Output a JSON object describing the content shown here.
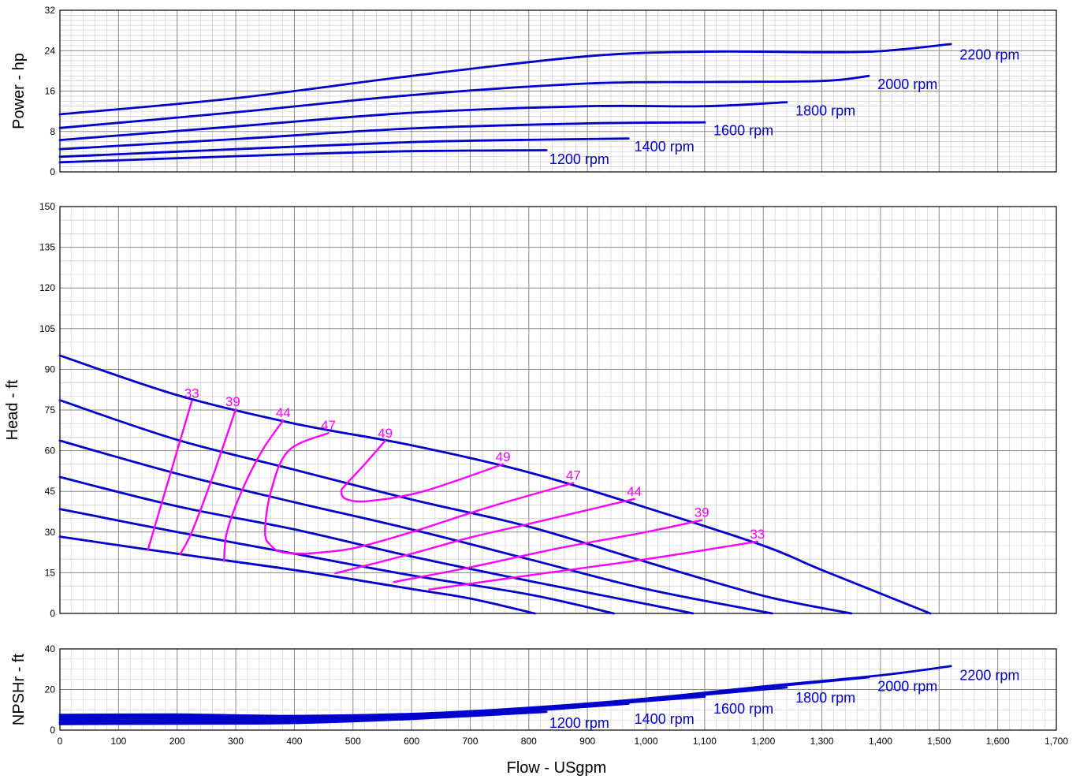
{
  "chart_data": {
    "type": "line",
    "x_axis": {
      "label": "Flow - USgpm",
      "range": [
        0,
        1700
      ],
      "ticks": [
        0,
        100,
        200,
        300,
        400,
        500,
        600,
        700,
        800,
        900,
        1000,
        1100,
        1200,
        1300,
        1400,
        1500,
        1600,
        1700
      ],
      "tick_labels": [
        "0",
        "100",
        "200",
        "300",
        "400",
        "500",
        "600",
        "700",
        "800",
        "900",
        "1,000",
        "1,100",
        "1,200",
        "1,300",
        "1,400",
        "1,500",
        "1,600",
        "1,700"
      ]
    },
    "colors": {
      "speed_curves": "#0000cc",
      "efficiency_curves": "#ff00ff",
      "grid": "#999999"
    },
    "panels": [
      {
        "id": "power",
        "ylabel": "Power - hp",
        "ylim": [
          0,
          32
        ],
        "yticks": [
          0,
          8,
          16,
          24,
          32
        ],
        "series": [
          {
            "name": "1200 rpm",
            "x": [
              0,
              200,
              400,
              600,
              830
            ],
            "y": [
              1.9,
              2.7,
              3.5,
              4.1,
              4.3
            ]
          },
          {
            "name": "1400 rpm",
            "x": [
              0,
              300,
              600,
              830,
              970
            ],
            "y": [
              3.0,
              4.5,
              5.9,
              6.4,
              6.6
            ]
          },
          {
            "name": "1600 rpm",
            "x": [
              0,
              300,
              600,
              900,
              1100
            ],
            "y": [
              4.5,
              6.5,
              8.6,
              9.6,
              9.8
            ]
          },
          {
            "name": "1800 rpm",
            "x": [
              0,
              300,
              600,
              900,
              1100,
              1240
            ],
            "y": [
              6.3,
              9.0,
              11.7,
              13.0,
              13.0,
              13.8
            ]
          },
          {
            "name": "2000 rpm",
            "x": [
              0,
              300,
              600,
              900,
              1100,
              1300,
              1380
            ],
            "y": [
              8.7,
              11.8,
              15.2,
              17.5,
              17.8,
              18.0,
              19.0
            ]
          },
          {
            "name": "2200 rpm",
            "x": [
              0,
              300,
              600,
              900,
              1100,
              1300,
              1400,
              1520
            ],
            "y": [
              11.4,
              14.6,
              19.0,
              22.9,
              23.8,
              23.7,
              23.9,
              25.3
            ]
          }
        ]
      },
      {
        "id": "head",
        "ylabel": "Head - ft",
        "ylim": [
          0,
          150
        ],
        "yticks": [
          0,
          15,
          30,
          45,
          60,
          75,
          90,
          105,
          120,
          135,
          150
        ],
        "series": [
          {
            "name": "1200 rpm",
            "x": [
              0,
              200,
              400,
              600,
              700,
              810
            ],
            "y": [
              28.3,
              22,
              16,
              9,
              5.5,
              0
            ]
          },
          {
            "name": "1400 rpm",
            "x": [
              0,
              200,
              400,
              600,
              800,
              945
            ],
            "y": [
              38.5,
              30,
              22,
              14,
              7,
              0
            ]
          },
          {
            "name": "1600 rpm",
            "x": [
              0,
              200,
              400,
              600,
              800,
              1000,
              1080
            ],
            "y": [
              50.3,
              39.5,
              31,
              21,
              12,
              3.5,
              0
            ]
          },
          {
            "name": "1800 rpm",
            "x": [
              0,
              200,
              400,
              600,
              800,
              1000,
              1215
            ],
            "y": [
              63.7,
              51.5,
              41,
              31,
              20,
              9,
              0
            ]
          },
          {
            "name": "2000 rpm",
            "x": [
              0,
              200,
              400,
              600,
              800,
              1000,
              1200,
              1350
            ],
            "y": [
              78.6,
              64,
              53,
              42,
              32,
              19,
              6.5,
              0
            ]
          },
          {
            "name": "2200 rpm",
            "x": [
              0,
              200,
              400,
              600,
              800,
              1000,
              1200,
              1300,
              1485
            ],
            "y": [
              95.1,
              80.5,
              70,
              62,
              52,
              39,
              25,
              16,
              0
            ]
          }
        ],
        "efficiency_curves": [
          {
            "label": "33",
            "x": [
              150,
              225
            ],
            "y": [
              23.3,
              78.3
            ]
          },
          {
            "label": "39",
            "x": [
              205,
              225,
              260,
              300
            ],
            "y": [
              21.8,
              30,
              50,
              75.3
            ]
          },
          {
            "label": "44",
            "x": [
              280,
              285,
              310,
              345,
              381
            ],
            "y": [
              19.3,
              30,
              45,
              60,
              71.2
            ]
          },
          {
            "label": "47",
            "x": [
              458,
              390,
              360,
              350,
              360,
              380,
              420
            ],
            "y": [
              66.5,
              60,
              45,
              30,
              25,
              22.5,
              22
            ]
          },
          {
            "label": "47",
            "x": [
              420,
              500,
              600,
              700,
              760,
              876
            ],
            "y": [
              22,
              24,
              30,
              37,
              41,
              48.1
            ]
          },
          {
            "label": "49",
            "x": [
              555,
              520,
              490,
              480,
              490,
              530,
              620,
              756
            ],
            "y": [
              63.7,
              55,
              48,
              45,
              42,
              41.5,
              45,
              55
            ]
          },
          {
            "label": "44",
            "x": [
              470,
              600,
              700,
              800,
              980
            ],
            "y": [
              14.8,
              22,
              28,
              33,
              42.2
            ]
          },
          {
            "label": "39",
            "x": [
              570,
              700,
              850,
              1000,
              1095
            ],
            "y": [
              11.6,
              17,
              24,
              30,
              34.4
            ]
          },
          {
            "label": "33",
            "x": [
              630,
              800,
              1000,
              1190
            ],
            "y": [
              8.8,
              14,
              20,
              26.5
            ]
          }
        ],
        "efficiency_labels": [
          {
            "text": "33",
            "x": 225,
            "y": 78.3
          },
          {
            "text": "39",
            "x": 295,
            "y": 75.3
          },
          {
            "text": "44",
            "x": 381,
            "y": 71.2
          },
          {
            "text": "47",
            "x": 458,
            "y": 66.5
          },
          {
            "text": "49",
            "x": 555,
            "y": 63.7
          },
          {
            "text": "49",
            "x": 756,
            "y": 55
          },
          {
            "text": "47",
            "x": 876,
            "y": 48.1
          },
          {
            "text": "44",
            "x": 980,
            "y": 42.2
          },
          {
            "text": "39",
            "x": 1095,
            "y": 34.4
          },
          {
            "text": "33",
            "x": 1190,
            "y": 26.5
          }
        ]
      },
      {
        "id": "npshr",
        "ylabel": "NPSHr - ft",
        "ylim": [
          0,
          40
        ],
        "yticks": [
          0,
          20,
          40
        ],
        "series": [
          {
            "name": "1200 rpm",
            "x": [
              0,
              200,
              400,
              600,
              830
            ],
            "y": [
              3.0,
              3.2,
              3.5,
              5.5,
              9.0
            ]
          },
          {
            "name": "1400 rpm",
            "x": [
              0,
              200,
              400,
              600,
              800,
              970
            ],
            "y": [
              3.5,
              3.7,
              4.0,
              6.0,
              9.5,
              13.0
            ]
          },
          {
            "name": "1600 rpm",
            "x": [
              0,
              200,
              400,
              600,
              800,
              1100
            ],
            "y": [
              4.5,
              4.7,
              5.0,
              6.5,
              10.0,
              16.5
            ]
          },
          {
            "name": "1800 rpm",
            "x": [
              0,
              200,
              400,
              600,
              800,
              1000,
              1240
            ],
            "y": [
              5.5,
              5.7,
              5.8,
              7.0,
              10.5,
              15.0,
              21.0
            ]
          },
          {
            "name": "2000 rpm",
            "x": [
              0,
              200,
              400,
              600,
              800,
              1000,
              1200,
              1380
            ],
            "y": [
              6.5,
              6.7,
              6.5,
              7.5,
              10.5,
              15.5,
              21.0,
              26.0
            ]
          },
          {
            "name": "2200 rpm",
            "x": [
              0,
              200,
              400,
              600,
              800,
              1000,
              1200,
              1400,
              1520
            ],
            "y": [
              7.5,
              7.7,
              7.0,
              8.0,
              11.0,
              15.5,
              21.5,
              27.0,
              31.5
            ]
          }
        ]
      }
    ],
    "rpm_labels": {
      "power": [
        {
          "text": "1200 rpm",
          "x": 835,
          "y": 2.5
        },
        {
          "text": "1400 rpm",
          "x": 980,
          "y": 5.0
        },
        {
          "text": "1600 rpm",
          "x": 1115,
          "y": 8.2
        },
        {
          "text": "1800 rpm",
          "x": 1255,
          "y": 12.1
        },
        {
          "text": "2000 rpm",
          "x": 1395,
          "y": 17.3
        },
        {
          "text": "2200 rpm",
          "x": 1535,
          "y": 23.2
        }
      ],
      "npshr": [
        {
          "text": "1200 rpm",
          "x": 835,
          "y": 3.5
        },
        {
          "text": "1400 rpm",
          "x": 980,
          "y": 5.5
        },
        {
          "text": "1600 rpm",
          "x": 1115,
          "y": 10.5
        },
        {
          "text": "1800 rpm",
          "x": 1255,
          "y": 16.0
        },
        {
          "text": "2000 rpm",
          "x": 1395,
          "y": 21.5
        },
        {
          "text": "2200 rpm",
          "x": 1535,
          "y": 27.0
        }
      ]
    }
  }
}
